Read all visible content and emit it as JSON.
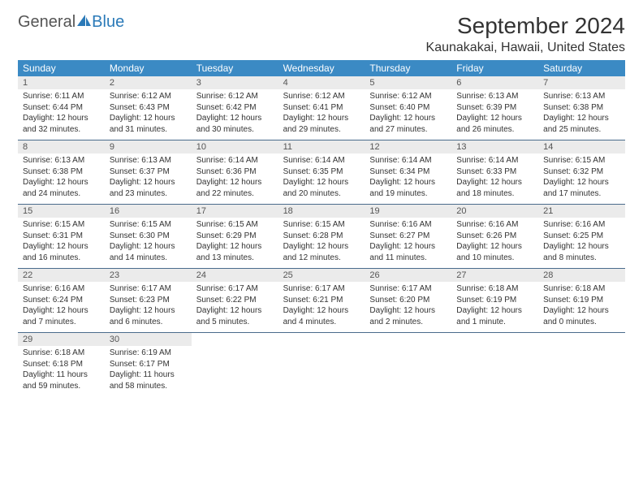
{
  "logo": {
    "text1": "General",
    "text2": "Blue",
    "iconColor": "#2b7ab8"
  },
  "title": "September 2024",
  "location": "Kaunakakai, Hawaii, United States",
  "colors": {
    "headerBg": "#3b8ac4",
    "headerText": "#ffffff",
    "numStripBg": "#ebebeb",
    "borderColor": "#4a6c8c",
    "bodyText": "#333333"
  },
  "dayNames": [
    "Sunday",
    "Monday",
    "Tuesday",
    "Wednesday",
    "Thursday",
    "Friday",
    "Saturday"
  ],
  "weeks": [
    [
      {
        "n": "1",
        "sr": "Sunrise: 6:11 AM",
        "ss": "Sunset: 6:44 PM",
        "dl": "Daylight: 12 hours and 32 minutes."
      },
      {
        "n": "2",
        "sr": "Sunrise: 6:12 AM",
        "ss": "Sunset: 6:43 PM",
        "dl": "Daylight: 12 hours and 31 minutes."
      },
      {
        "n": "3",
        "sr": "Sunrise: 6:12 AM",
        "ss": "Sunset: 6:42 PM",
        "dl": "Daylight: 12 hours and 30 minutes."
      },
      {
        "n": "4",
        "sr": "Sunrise: 6:12 AM",
        "ss": "Sunset: 6:41 PM",
        "dl": "Daylight: 12 hours and 29 minutes."
      },
      {
        "n": "5",
        "sr": "Sunrise: 6:12 AM",
        "ss": "Sunset: 6:40 PM",
        "dl": "Daylight: 12 hours and 27 minutes."
      },
      {
        "n": "6",
        "sr": "Sunrise: 6:13 AM",
        "ss": "Sunset: 6:39 PM",
        "dl": "Daylight: 12 hours and 26 minutes."
      },
      {
        "n": "7",
        "sr": "Sunrise: 6:13 AM",
        "ss": "Sunset: 6:38 PM",
        "dl": "Daylight: 12 hours and 25 minutes."
      }
    ],
    [
      {
        "n": "8",
        "sr": "Sunrise: 6:13 AM",
        "ss": "Sunset: 6:38 PM",
        "dl": "Daylight: 12 hours and 24 minutes."
      },
      {
        "n": "9",
        "sr": "Sunrise: 6:13 AM",
        "ss": "Sunset: 6:37 PM",
        "dl": "Daylight: 12 hours and 23 minutes."
      },
      {
        "n": "10",
        "sr": "Sunrise: 6:14 AM",
        "ss": "Sunset: 6:36 PM",
        "dl": "Daylight: 12 hours and 22 minutes."
      },
      {
        "n": "11",
        "sr": "Sunrise: 6:14 AM",
        "ss": "Sunset: 6:35 PM",
        "dl": "Daylight: 12 hours and 20 minutes."
      },
      {
        "n": "12",
        "sr": "Sunrise: 6:14 AM",
        "ss": "Sunset: 6:34 PM",
        "dl": "Daylight: 12 hours and 19 minutes."
      },
      {
        "n": "13",
        "sr": "Sunrise: 6:14 AM",
        "ss": "Sunset: 6:33 PM",
        "dl": "Daylight: 12 hours and 18 minutes."
      },
      {
        "n": "14",
        "sr": "Sunrise: 6:15 AM",
        "ss": "Sunset: 6:32 PM",
        "dl": "Daylight: 12 hours and 17 minutes."
      }
    ],
    [
      {
        "n": "15",
        "sr": "Sunrise: 6:15 AM",
        "ss": "Sunset: 6:31 PM",
        "dl": "Daylight: 12 hours and 16 minutes."
      },
      {
        "n": "16",
        "sr": "Sunrise: 6:15 AM",
        "ss": "Sunset: 6:30 PM",
        "dl": "Daylight: 12 hours and 14 minutes."
      },
      {
        "n": "17",
        "sr": "Sunrise: 6:15 AM",
        "ss": "Sunset: 6:29 PM",
        "dl": "Daylight: 12 hours and 13 minutes."
      },
      {
        "n": "18",
        "sr": "Sunrise: 6:15 AM",
        "ss": "Sunset: 6:28 PM",
        "dl": "Daylight: 12 hours and 12 minutes."
      },
      {
        "n": "19",
        "sr": "Sunrise: 6:16 AM",
        "ss": "Sunset: 6:27 PM",
        "dl": "Daylight: 12 hours and 11 minutes."
      },
      {
        "n": "20",
        "sr": "Sunrise: 6:16 AM",
        "ss": "Sunset: 6:26 PM",
        "dl": "Daylight: 12 hours and 10 minutes."
      },
      {
        "n": "21",
        "sr": "Sunrise: 6:16 AM",
        "ss": "Sunset: 6:25 PM",
        "dl": "Daylight: 12 hours and 8 minutes."
      }
    ],
    [
      {
        "n": "22",
        "sr": "Sunrise: 6:16 AM",
        "ss": "Sunset: 6:24 PM",
        "dl": "Daylight: 12 hours and 7 minutes."
      },
      {
        "n": "23",
        "sr": "Sunrise: 6:17 AM",
        "ss": "Sunset: 6:23 PM",
        "dl": "Daylight: 12 hours and 6 minutes."
      },
      {
        "n": "24",
        "sr": "Sunrise: 6:17 AM",
        "ss": "Sunset: 6:22 PM",
        "dl": "Daylight: 12 hours and 5 minutes."
      },
      {
        "n": "25",
        "sr": "Sunrise: 6:17 AM",
        "ss": "Sunset: 6:21 PM",
        "dl": "Daylight: 12 hours and 4 minutes."
      },
      {
        "n": "26",
        "sr": "Sunrise: 6:17 AM",
        "ss": "Sunset: 6:20 PM",
        "dl": "Daylight: 12 hours and 2 minutes."
      },
      {
        "n": "27",
        "sr": "Sunrise: 6:18 AM",
        "ss": "Sunset: 6:19 PM",
        "dl": "Daylight: 12 hours and 1 minute."
      },
      {
        "n": "28",
        "sr": "Sunrise: 6:18 AM",
        "ss": "Sunset: 6:19 PM",
        "dl": "Daylight: 12 hours and 0 minutes."
      }
    ],
    [
      {
        "n": "29",
        "sr": "Sunrise: 6:18 AM",
        "ss": "Sunset: 6:18 PM",
        "dl": "Daylight: 11 hours and 59 minutes."
      },
      {
        "n": "30",
        "sr": "Sunrise: 6:19 AM",
        "ss": "Sunset: 6:17 PM",
        "dl": "Daylight: 11 hours and 58 minutes."
      },
      null,
      null,
      null,
      null,
      null
    ]
  ]
}
